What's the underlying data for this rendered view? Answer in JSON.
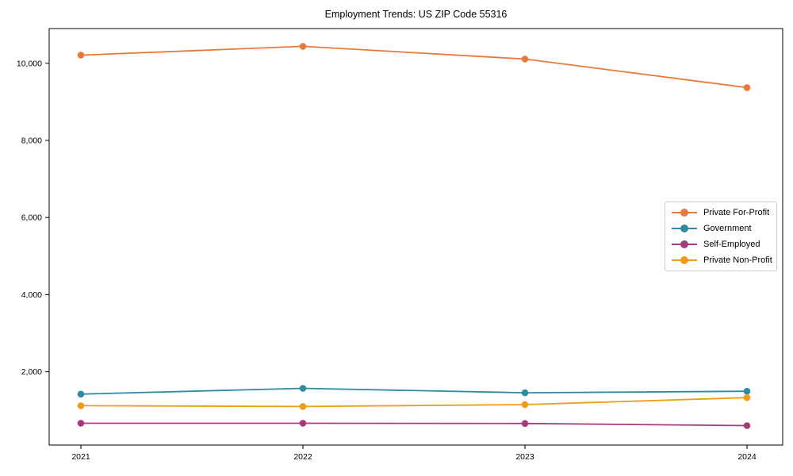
{
  "chart_data": {
    "type": "line",
    "title": "Employment Trends: US ZIP Code 55316",
    "xlabel": "",
    "ylabel": "",
    "categories": [
      "2021",
      "2022",
      "2023",
      "2024"
    ],
    "series": [
      {
        "name": "Private For-Profit",
        "color": "#E8793D",
        "values": [
          10210,
          10440,
          10110,
          9370
        ]
      },
      {
        "name": "Government",
        "color": "#2F8BA4",
        "values": [
          1420,
          1570,
          1455,
          1495
        ]
      },
      {
        "name": "Self-Employed",
        "color": "#A53B7C",
        "values": [
          665,
          665,
          660,
          605
        ]
      },
      {
        "name": "Private Non-Profit",
        "color": "#F09C1A",
        "values": [
          1120,
          1100,
          1150,
          1330
        ]
      }
    ],
    "ylim": [
      100,
      10900
    ],
    "yticks": [
      2000,
      4000,
      6000,
      8000,
      10000
    ],
    "ytick_labels": [
      "2,000",
      "4,000",
      "6,000",
      "8,000",
      "10,000"
    ],
    "grid": false,
    "legend_position": "center right",
    "axis_color": "#000000",
    "legend_border_color": "#cccccc"
  }
}
